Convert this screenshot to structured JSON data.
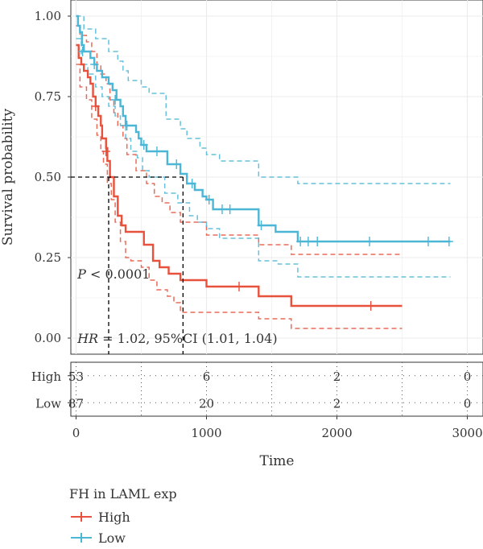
{
  "chart_data": {
    "type": "line",
    "subtype": "kaplan-meier",
    "ylabel": "Survival probability",
    "xlabel": "Time",
    "xlim": [
      -40,
      3120
    ],
    "ylim": [
      -0.05,
      1.05
    ],
    "x_ticks": [
      0,
      1000,
      2000,
      3000
    ],
    "x_tick_labels": [
      "0",
      "1000",
      "2000",
      "3000"
    ],
    "y_ticks": [
      0,
      0.25,
      0.5,
      0.75,
      1.0
    ],
    "y_tick_labels": [
      "0.00",
      "0.25",
      "0.50",
      "0.75",
      "1.00"
    ],
    "grid": true,
    "median_survival": {
      "y": 0.5,
      "High": 250,
      "Low": 820
    },
    "annotations": {
      "p_value": {
        "italic": "P",
        "text": " < 0.0001",
        "x": 10,
        "y": 0.2
      },
      "hr": {
        "italic": "HR",
        "text": " = 1.02, 95%CI (1.01, 1.04)",
        "x": 10,
        "y": 0.0
      }
    },
    "series": [
      {
        "name": "High",
        "color": "#e8513b",
        "steps": [
          [
            0,
            0.91
          ],
          [
            20,
            0.87
          ],
          [
            40,
            0.85
          ],
          [
            60,
            0.83
          ],
          [
            90,
            0.81
          ],
          [
            110,
            0.79
          ],
          [
            130,
            0.75
          ],
          [
            150,
            0.72
          ],
          [
            170,
            0.69
          ],
          [
            190,
            0.66
          ],
          [
            200,
            0.62
          ],
          [
            230,
            0.59
          ],
          [
            240,
            0.55
          ],
          [
            260,
            0.5
          ],
          [
            290,
            0.44
          ],
          [
            320,
            0.38
          ],
          [
            350,
            0.35
          ],
          [
            380,
            0.33
          ],
          [
            520,
            0.29
          ],
          [
            590,
            0.24
          ],
          [
            640,
            0.22
          ],
          [
            710,
            0.2
          ],
          [
            800,
            0.18
          ],
          [
            1000,
            0.16
          ],
          [
            1400,
            0.13
          ],
          [
            1650,
            0.1
          ],
          [
            2500,
            0.1
          ]
        ],
        "lower": [
          [
            0,
            0.85
          ],
          [
            30,
            0.78
          ],
          [
            80,
            0.74
          ],
          [
            120,
            0.68
          ],
          [
            160,
            0.63
          ],
          [
            190,
            0.58
          ],
          [
            210,
            0.54
          ],
          [
            240,
            0.48
          ],
          [
            270,
            0.43
          ],
          [
            300,
            0.36
          ],
          [
            340,
            0.3
          ],
          [
            380,
            0.25
          ],
          [
            420,
            0.24
          ],
          [
            500,
            0.22
          ],
          [
            560,
            0.18
          ],
          [
            620,
            0.15
          ],
          [
            700,
            0.13
          ],
          [
            750,
            0.11
          ],
          [
            800,
            0.08
          ],
          [
            1400,
            0.06
          ],
          [
            1650,
            0.03
          ],
          [
            2500,
            0.03
          ]
        ],
        "upper": [
          [
            0,
            0.97
          ],
          [
            30,
            0.94
          ],
          [
            80,
            0.92
          ],
          [
            120,
            0.89
          ],
          [
            160,
            0.85
          ],
          [
            190,
            0.82
          ],
          [
            230,
            0.79
          ],
          [
            260,
            0.74
          ],
          [
            290,
            0.7
          ],
          [
            320,
            0.66
          ],
          [
            360,
            0.62
          ],
          [
            390,
            0.57
          ],
          [
            460,
            0.52
          ],
          [
            540,
            0.48
          ],
          [
            600,
            0.44
          ],
          [
            660,
            0.42
          ],
          [
            720,
            0.39
          ],
          [
            800,
            0.36
          ],
          [
            1000,
            0.32
          ],
          [
            1400,
            0.29
          ],
          [
            1650,
            0.26
          ],
          [
            2500,
            0.26
          ]
        ],
        "censors": [
          [
            150,
            0.72
          ],
          [
            230,
            0.58
          ],
          [
            1250,
            0.16
          ],
          [
            2260,
            0.1
          ]
        ]
      },
      {
        "name": "Low",
        "color": "#4cb6d6",
        "steps": [
          [
            0,
            1.0
          ],
          [
            15,
            0.97
          ],
          [
            30,
            0.95
          ],
          [
            45,
            0.91
          ],
          [
            60,
            0.89
          ],
          [
            110,
            0.87
          ],
          [
            140,
            0.85
          ],
          [
            160,
            0.83
          ],
          [
            200,
            0.81
          ],
          [
            250,
            0.79
          ],
          [
            280,
            0.77
          ],
          [
            310,
            0.74
          ],
          [
            340,
            0.72
          ],
          [
            360,
            0.69
          ],
          [
            380,
            0.66
          ],
          [
            460,
            0.64
          ],
          [
            480,
            0.62
          ],
          [
            500,
            0.6
          ],
          [
            540,
            0.58
          ],
          [
            700,
            0.54
          ],
          [
            800,
            0.51
          ],
          [
            850,
            0.48
          ],
          [
            910,
            0.46
          ],
          [
            970,
            0.44
          ],
          [
            1000,
            0.43
          ],
          [
            1050,
            0.4
          ],
          [
            1400,
            0.35
          ],
          [
            1530,
            0.33
          ],
          [
            1700,
            0.3
          ],
          [
            2870,
            0.3
          ]
        ],
        "lower": [
          [
            0,
            0.93
          ],
          [
            40,
            0.85
          ],
          [
            90,
            0.82
          ],
          [
            150,
            0.78
          ],
          [
            200,
            0.75
          ],
          [
            250,
            0.72
          ],
          [
            300,
            0.69
          ],
          [
            340,
            0.66
          ],
          [
            380,
            0.62
          ],
          [
            420,
            0.58
          ],
          [
            470,
            0.56
          ],
          [
            510,
            0.52
          ],
          [
            560,
            0.5
          ],
          [
            680,
            0.45
          ],
          [
            780,
            0.42
          ],
          [
            870,
            0.38
          ],
          [
            930,
            0.36
          ],
          [
            1000,
            0.34
          ],
          [
            1100,
            0.31
          ],
          [
            1400,
            0.24
          ],
          [
            1550,
            0.23
          ],
          [
            1700,
            0.19
          ],
          [
            2870,
            0.19
          ]
        ],
        "upper": [
          [
            0,
            1.0
          ],
          [
            60,
            0.96
          ],
          [
            150,
            0.93
          ],
          [
            250,
            0.89
          ],
          [
            320,
            0.86
          ],
          [
            360,
            0.83
          ],
          [
            400,
            0.8
          ],
          [
            500,
            0.78
          ],
          [
            560,
            0.76
          ],
          [
            690,
            0.68
          ],
          [
            800,
            0.65
          ],
          [
            850,
            0.62
          ],
          [
            950,
            0.59
          ],
          [
            1000,
            0.57
          ],
          [
            1100,
            0.55
          ],
          [
            1400,
            0.5
          ],
          [
            1700,
            0.48
          ],
          [
            2870,
            0.48
          ]
        ],
        "censors": [
          [
            50,
            0.89
          ],
          [
            140,
            0.85
          ],
          [
            300,
            0.74
          ],
          [
            390,
            0.66
          ],
          [
            520,
            0.6
          ],
          [
            620,
            0.58
          ],
          [
            770,
            0.54
          ],
          [
            890,
            0.48
          ],
          [
            1020,
            0.43
          ],
          [
            1120,
            0.4
          ],
          [
            1180,
            0.4
          ],
          [
            1420,
            0.35
          ],
          [
            1720,
            0.3
          ],
          [
            1780,
            0.3
          ],
          [
            1850,
            0.3
          ],
          [
            2250,
            0.3
          ],
          [
            2700,
            0.3
          ],
          [
            2860,
            0.3
          ]
        ]
      }
    ],
    "risk_table": {
      "times": [
        0,
        1000,
        2000,
        3000
      ],
      "rows": [
        {
          "name": "High",
          "counts": [
            "53",
            "6",
            "2",
            "0"
          ]
        },
        {
          "name": "Low",
          "counts": [
            "87",
            "20",
            "2",
            "0"
          ]
        }
      ]
    }
  },
  "legend": {
    "title": "FH in LAML exp",
    "items": [
      {
        "label": "High",
        "color": "#e8513b"
      },
      {
        "label": "Low",
        "color": "#4cb6d6"
      }
    ]
  }
}
